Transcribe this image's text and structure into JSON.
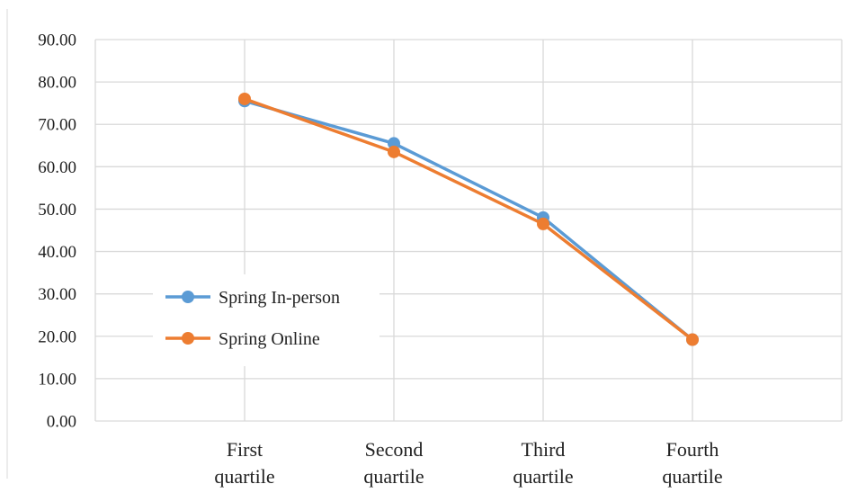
{
  "chart_data": {
    "type": "line",
    "title": "",
    "xlabel": "",
    "ylabel": "",
    "categories": [
      [
        "First",
        "quartile"
      ],
      [
        "Second",
        "quartile"
      ],
      [
        "Third",
        "quartile"
      ],
      [
        "Fourth",
        "quartile"
      ]
    ],
    "yticks": [
      "0.00",
      "10.00",
      "20.00",
      "30.00",
      "40.00",
      "50.00",
      "60.00",
      "70.00",
      "80.00",
      "90.00"
    ],
    "ylim": [
      0,
      90
    ],
    "ystep": 10,
    "grid": true,
    "legend_position": "left-inside",
    "series": [
      {
        "name": "Spring In-person",
        "color": "#5B9BD5",
        "values": [
          75.5,
          65.5,
          48.0,
          19.2
        ]
      },
      {
        "name": "Spring Online",
        "color": "#ED7D31",
        "values": [
          76.0,
          63.5,
          46.5,
          19.2
        ]
      }
    ]
  }
}
